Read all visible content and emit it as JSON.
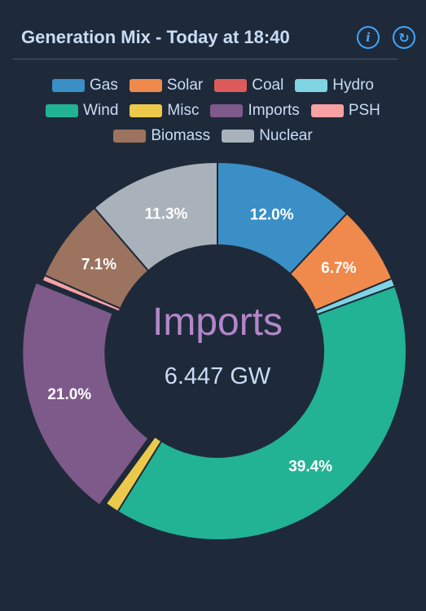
{
  "header": {
    "title": "Generation Mix - Today at 18:40",
    "info_icon": "info-icon",
    "refresh_icon": "refresh-icon",
    "info_glyph": "i",
    "refresh_glyph": "↻"
  },
  "center": {
    "name": "Imports",
    "value": "6.447 GW"
  },
  "chart_data": {
    "type": "pie",
    "donut": true,
    "legend_placement": "top",
    "categories": [
      "Gas",
      "Solar",
      "Coal",
      "Hydro",
      "Wind",
      "Misc",
      "Imports",
      "PSH",
      "Biomass",
      "Nuclear"
    ],
    "legend_rows": [
      [
        "Gas",
        "Solar",
        "Coal",
        "Hydro"
      ],
      [
        "Wind",
        "Misc",
        "Imports",
        "PSH"
      ],
      [
        "Biomass",
        "Nuclear"
      ]
    ],
    "values": [
      12.0,
      6.7,
      0.0,
      0.7,
      39.4,
      1.2,
      21.0,
      0.5,
      7.1,
      11.3
    ],
    "labels": [
      "12.0%",
      "6.7%",
      "",
      "",
      "39.4%",
      "",
      "21.0%",
      "",
      "7.1%",
      "11.3%"
    ],
    "colors": [
      "#3a8fc7",
      "#ef8a4c",
      "#de5b5b",
      "#7fd3e3",
      "#22b394",
      "#ecc94b",
      "#7e5a8a",
      "#f8a1a4",
      "#9b735e",
      "#a9b1ba"
    ],
    "highlighted": "Imports",
    "start_angle_deg": 0
  }
}
